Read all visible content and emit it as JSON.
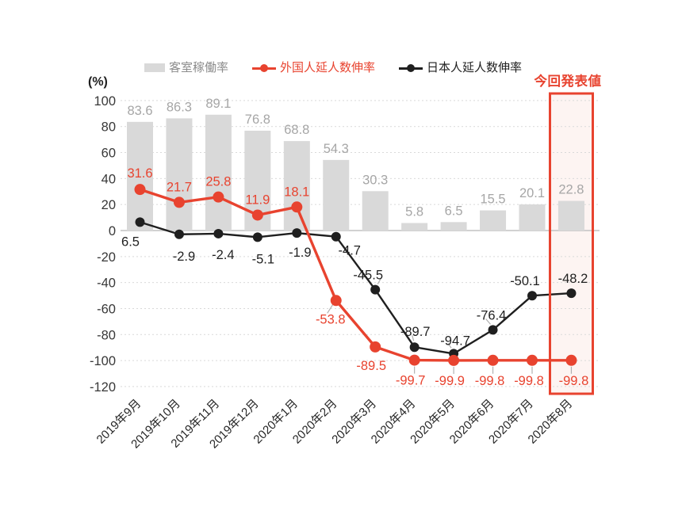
{
  "chart_data": {
    "type": "combo (bar + line)",
    "unit_label": "(%)",
    "categories": [
      "2019年9月",
      "2019年10月",
      "2019年11月",
      "2019年12月",
      "2020年1月",
      "2020年2月",
      "2020年3月",
      "2020年4月",
      "2020年5月",
      "2020年6月",
      "2020年7月",
      "2020年8月"
    ],
    "series": [
      {
        "name": "客室稼働率",
        "type": "bar",
        "color": "#d9d9d9",
        "label_color": "#a6a6a6",
        "legend_text_color": "#8c8c8c",
        "values": [
          83.6,
          86.3,
          89.1,
          76.8,
          68.8,
          54.3,
          30.3,
          5.8,
          6.5,
          15.5,
          20.1,
          22.8
        ]
      },
      {
        "name": "外国人延人数伸率",
        "type": "line",
        "color": "#e8432f",
        "label_color": "#e8432f",
        "legend_text_color": "#e8432f",
        "values": [
          31.6,
          21.7,
          25.8,
          11.9,
          18.1,
          -53.8,
          -89.5,
          -99.7,
          -99.9,
          -99.8,
          -99.8,
          -99.8
        ]
      },
      {
        "name": "日本人延人数伸率",
        "type": "line",
        "color": "#1f1f1f",
        "label_color": "#1f1f1f",
        "legend_text_color": "#1f1f1f",
        "values": [
          6.5,
          -2.9,
          -2.4,
          -5.1,
          -1.9,
          -4.7,
          -45.5,
          -89.7,
          -94.7,
          -76.4,
          -50.1,
          -48.2
        ]
      }
    ],
    "ylim": [
      -120,
      100
    ],
    "ytick_step": 20,
    "yticks": [
      100,
      80,
      60,
      40,
      20,
      0,
      -20,
      -40,
      -60,
      -80,
      -100,
      -120
    ],
    "grid": "horizontal dotted",
    "legend_position": "top",
    "highlight": {
      "category": "2020年8月",
      "label": "今回発表値",
      "box_color": "#e8432f",
      "box_fill": "#fdf4f2"
    }
  },
  "colors": {
    "bar": "#d9d9d9",
    "foreign_line": "#e8432f",
    "japanese_line": "#1f1f1f",
    "grid": "#d9d9d9",
    "zero_axis": "#c2c2c2",
    "tick_text": "#383838",
    "leader": "#b0b0b0"
  }
}
